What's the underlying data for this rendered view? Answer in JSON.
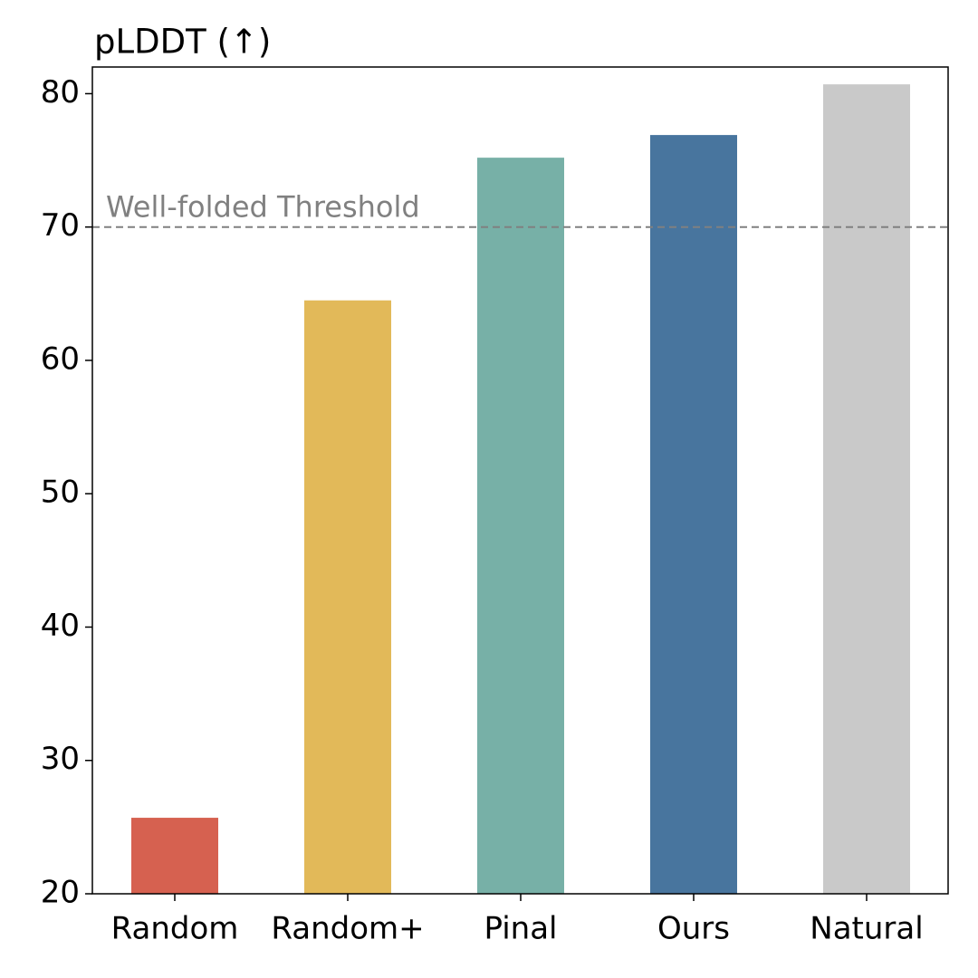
{
  "chart_data": {
    "type": "bar",
    "title": "pLDDT (↑)",
    "categories": [
      "Random",
      "Random+",
      "Pinal",
      "Ours",
      "Natural"
    ],
    "values": [
      25.7,
      64.5,
      75.2,
      76.9,
      80.7
    ],
    "colors": [
      "#d66150",
      "#e2b959",
      "#77b0a7",
      "#48759e",
      "#c9c9c9"
    ],
    "ylim": [
      20,
      82
    ],
    "yticks": [
      20,
      30,
      40,
      50,
      60,
      70,
      80
    ],
    "threshold": {
      "value": 70,
      "label": "Well-folded Threshold",
      "color": "#808080"
    }
  }
}
